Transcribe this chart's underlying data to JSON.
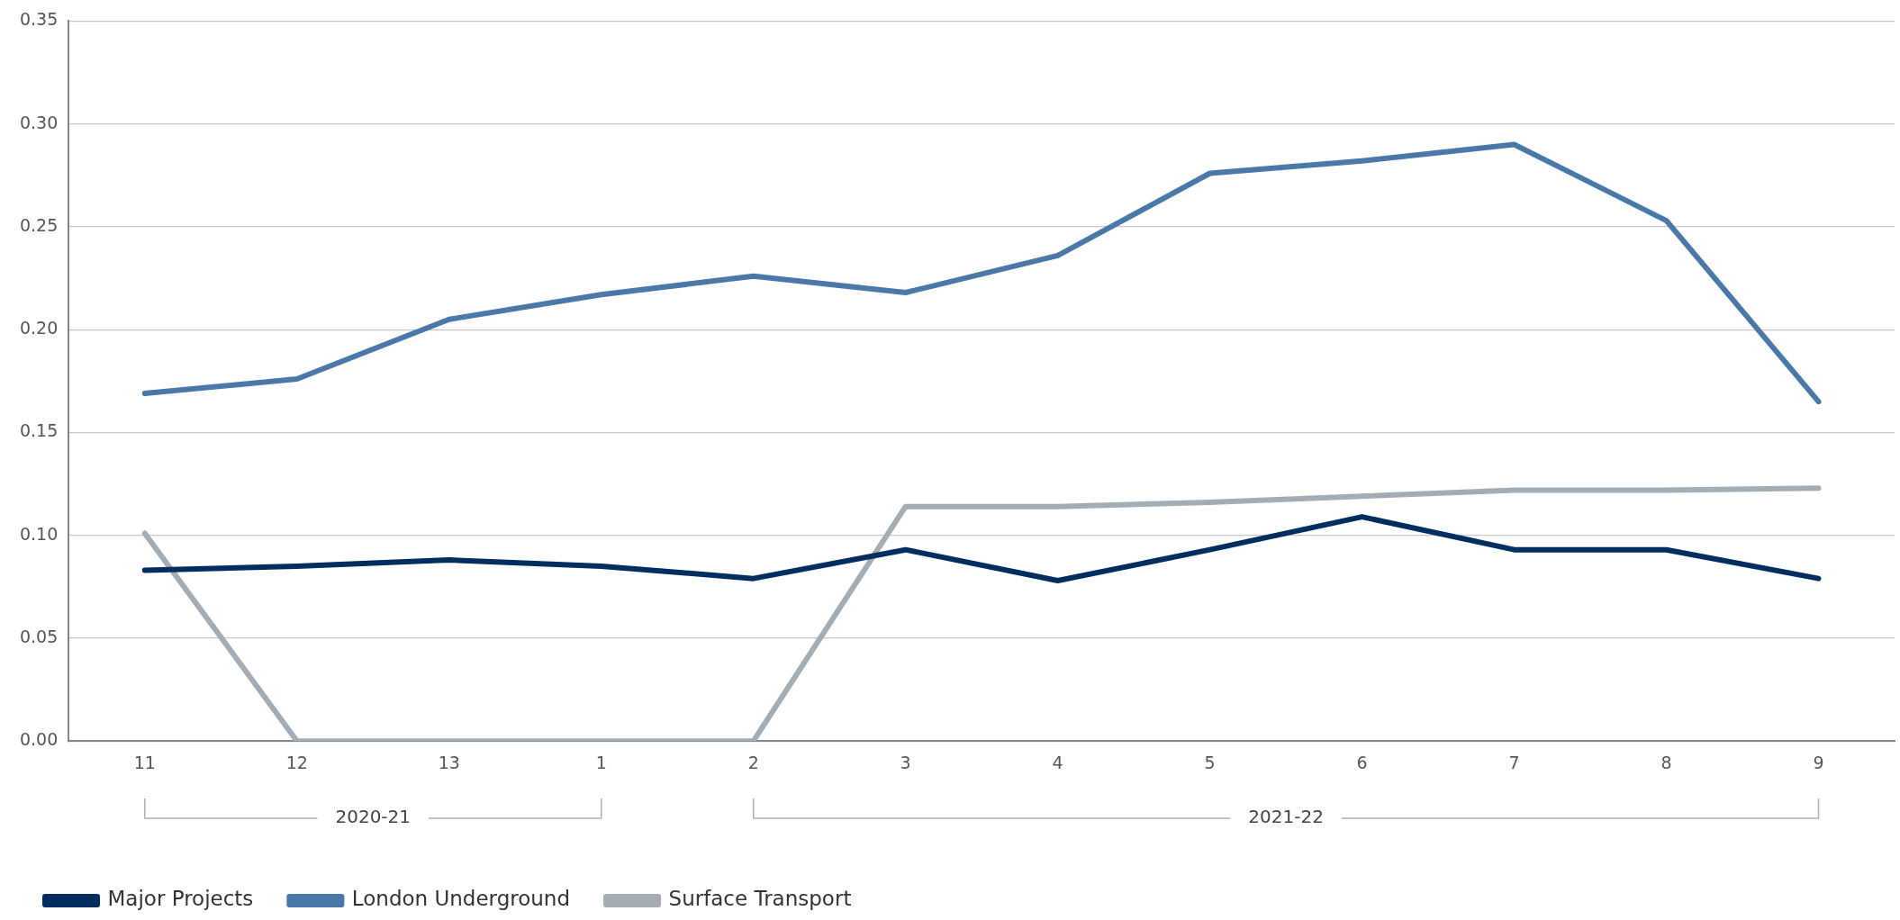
{
  "chart_data": {
    "type": "line",
    "categories": [
      "11",
      "12",
      "13",
      "1",
      "2",
      "3",
      "4",
      "5",
      "6",
      "7",
      "8",
      "9"
    ],
    "series": [
      {
        "name": "Major Projects",
        "color": "#002d5f",
        "values": [
          0.083,
          0.085,
          0.088,
          0.085,
          0.079,
          0.093,
          0.078,
          0.093,
          0.109,
          0.093,
          0.093,
          0.079
        ]
      },
      {
        "name": "London Underground",
        "color": "#4a78a8",
        "values": [
          0.169,
          0.176,
          0.205,
          0.217,
          0.226,
          0.218,
          0.236,
          0.276,
          0.282,
          0.29,
          0.253,
          0.165
        ]
      },
      {
        "name": "Surface Transport",
        "color": "#a4adb3",
        "values": [
          0.101,
          0,
          0,
          0,
          0,
          0.114,
          0.114,
          0.116,
          0.119,
          0.122,
          0.122,
          0.123
        ]
      }
    ],
    "annotations": [
      "2020-21",
      "2021-22"
    ],
    "ylim": [
      0,
      0.35
    ],
    "yticks": [
      {
        "value": 0,
        "label": "0.00"
      },
      0.05,
      {
        "value": 0.1,
        "label": "0.10"
      },
      0.15,
      {
        "value": 0.2,
        "label": "0.20"
      },
      0.25,
      {
        "value": 0.3,
        "label": "0.30"
      },
      0.35
    ],
    "grid": "y",
    "legend": "bottom left",
    "marker": "none",
    "line_style": "solid"
  }
}
